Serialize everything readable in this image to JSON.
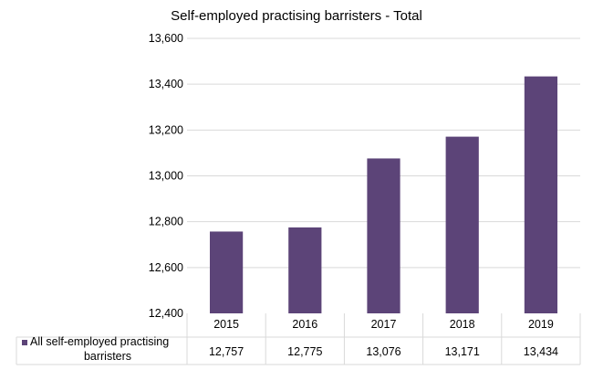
{
  "chart_data": {
    "type": "bar",
    "title": "Self-employed practising barristers - Total",
    "categories": [
      "2015",
      "2016",
      "2017",
      "2018",
      "2019"
    ],
    "series": [
      {
        "name": "All self-employed practising barristers",
        "values": [
          12757,
          12775,
          13076,
          13171,
          13434
        ],
        "color": "#5c4478"
      }
    ],
    "data_table": {
      "row_label_lines": [
        "All self-employed practising",
        "barristers"
      ],
      "cells": [
        "12,757",
        "12,775",
        "13,076",
        "13,171",
        "13,434"
      ]
    },
    "yticks": [
      "12,400",
      "12,600",
      "12,800",
      "13,000",
      "13,200",
      "13,400",
      "13,600"
    ],
    "ylim": [
      12400,
      13600
    ],
    "grid": true,
    "legend": "data-table"
  }
}
